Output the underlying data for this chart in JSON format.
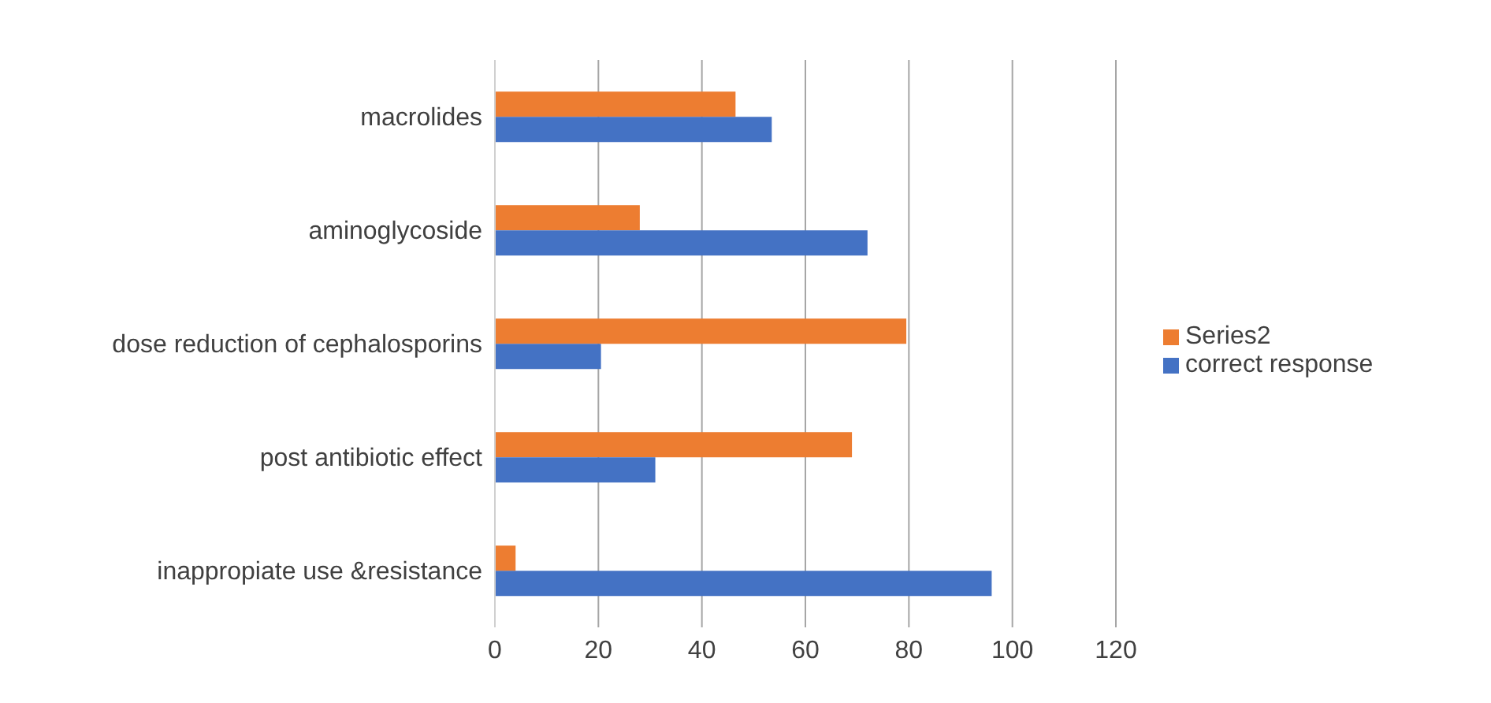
{
  "chart_data": {
    "type": "bar",
    "orientation": "horizontal",
    "categories": [
      "macrolides",
      "aminoglycoside",
      "dose reduction of cephalosporins",
      "post antibiotic effect",
      "inappropiate use &resistance"
    ],
    "series": [
      {
        "name": "Series2",
        "color": "#ed7d31",
        "values": [
          46.5,
          28,
          79.5,
          69,
          4
        ]
      },
      {
        "name": "correct response",
        "color": "#4472c4",
        "values": [
          53.5,
          72,
          20.5,
          31,
          96
        ]
      }
    ],
    "xlim": [
      0,
      120
    ],
    "xticks": [
      0,
      20,
      40,
      60,
      80,
      100,
      120
    ],
    "grid": "x",
    "legend": "right"
  }
}
